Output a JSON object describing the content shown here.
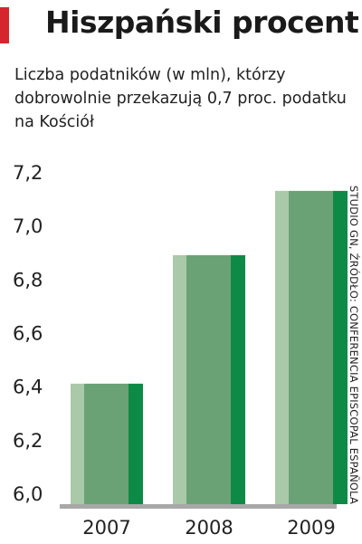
{
  "header": {
    "title": "Hiszpański procent",
    "subtitle": "Liczba podatników (w mln), którzy dobrowolnie przekazują 0,7 proc. podatku na Kościół"
  },
  "source": "STUDIO GN, ŹRÓDŁO: CONFERENCIA EPISCOPAL ESPAÑOLA",
  "colors": {
    "accent": "#d6262d",
    "bar_light": "#a9c9a8",
    "bar_mid": "#6aa276",
    "bar_dark": "#0e8a47",
    "axis": "#a8a8a8"
  },
  "chart_data": {
    "type": "bar",
    "categories": [
      "2007",
      "2008",
      "2009"
    ],
    "values": [
      6.45,
      6.93,
      7.17
    ],
    "y_ticks": [
      "6,0",
      "6,2",
      "6,4",
      "6,6",
      "6,8",
      "7,0",
      "7,2"
    ],
    "ylim": [
      6.0,
      7.2
    ],
    "grid": false
  }
}
